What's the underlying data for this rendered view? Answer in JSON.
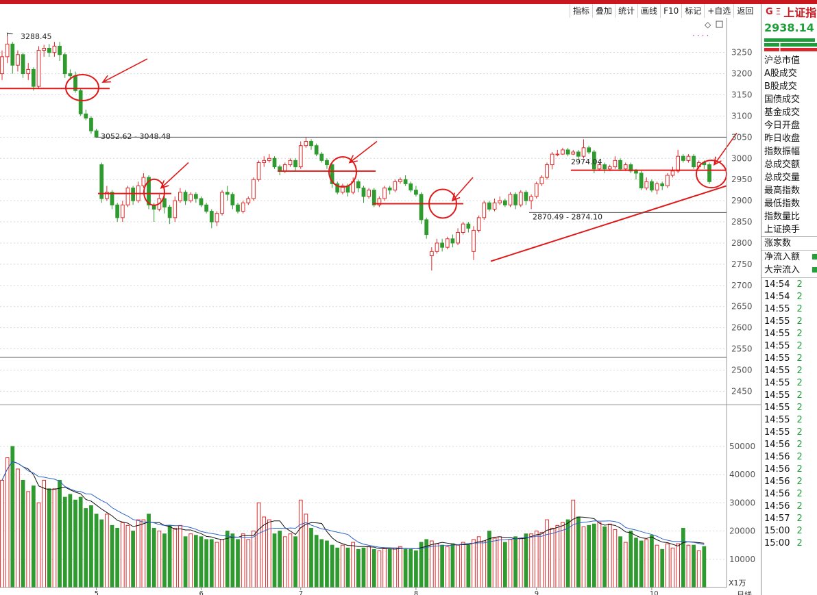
{
  "toolbar": {
    "buttons": [
      "指标",
      "叠加",
      "统计",
      "画线",
      "F10",
      "标记",
      "+自选",
      "返回"
    ]
  },
  "quote": {
    "marker_g": "G",
    "marker_e": "Ξ",
    "name": "上证指",
    "price": "2938.14",
    "fields": [
      "沪总市值",
      "A股成交",
      "B股成交",
      "国债成交",
      "基金成交",
      "今日开盘",
      "昨日收盘",
      "指数振幅",
      "总成交额",
      "总成交量",
      "最高指数",
      "最低指数",
      "指数量比",
      "上证换手",
      "涨家数",
      "净流入额",
      "大宗流入"
    ],
    "ticks": [
      {
        "time": "14:54",
        "v": "2"
      },
      {
        "time": "14:54",
        "v": "2"
      },
      {
        "time": "14:55",
        "v": "2"
      },
      {
        "time": "14:55",
        "v": "2"
      },
      {
        "time": "14:55",
        "v": "2"
      },
      {
        "time": "14:55",
        "v": "2"
      },
      {
        "time": "14:55",
        "v": "2"
      },
      {
        "time": "14:55",
        "v": "2"
      },
      {
        "time": "14:55",
        "v": "2"
      },
      {
        "time": "14:55",
        "v": "2"
      },
      {
        "time": "14:55",
        "v": "2"
      },
      {
        "time": "14:55",
        "v": "2"
      },
      {
        "time": "14:55",
        "v": "2"
      },
      {
        "time": "14:56",
        "v": "2"
      },
      {
        "time": "14:56",
        "v": "2"
      },
      {
        "time": "14:56",
        "v": "2"
      },
      {
        "time": "14:56",
        "v": "2"
      },
      {
        "time": "14:56",
        "v": "2"
      },
      {
        "time": "14:56",
        "v": "2"
      },
      {
        "time": "14:57",
        "v": "2"
      },
      {
        "time": "15:00",
        "v": "2"
      },
      {
        "time": "15:00",
        "v": "2"
      }
    ]
  },
  "colors": {
    "up": "#e02828",
    "down": "#2f9a2f",
    "annot": "#e01818",
    "ma_black": "#111111",
    "ma_blue": "#2a62c8"
  },
  "chart_data": {
    "type": "candlestick",
    "price_axis": {
      "ticks": [
        "3250",
        "3200",
        "3150",
        "3100",
        "3050",
        "3000",
        "2950",
        "2900",
        "2850",
        "2800",
        "2750",
        "2700",
        "2650",
        "2600",
        "2550",
        "2500",
        "2450"
      ],
      "range": [
        2410,
        3290
      ]
    },
    "volume_axis": {
      "ticks": [
        "50000",
        "40000",
        "30000",
        "20000",
        "10000"
      ],
      "range": [
        0,
        58000
      ],
      "unit": "X1万"
    },
    "x_axis": {
      "month_labels": [
        "5",
        "6",
        "7",
        "8",
        "9",
        "10"
      ],
      "corner_label": "日线"
    },
    "annotations": {
      "high_label": "3288.45",
      "range_label_1": "3052.62 - 3048.48",
      "range_label_2": "2870.49 - 2874.10",
      "range_label_3": "2974.04"
    },
    "candles": [
      [
        3200,
        3240,
        3255,
        3185
      ],
      [
        3240,
        3270,
        3288.45,
        3225
      ],
      [
        3270,
        3220,
        3275,
        3200
      ],
      [
        3220,
        3245,
        3255,
        3205
      ],
      [
        3245,
        3200,
        3250,
        3190
      ],
      [
        3200,
        3210,
        3225,
        3185
      ],
      [
        3210,
        3170,
        3215,
        3160
      ],
      [
        3170,
        3255,
        3265,
        3165
      ],
      [
        3255,
        3260,
        3268,
        3240
      ],
      [
        3260,
        3250,
        3270,
        3240
      ],
      [
        3250,
        3265,
        3275,
        3240
      ],
      [
        3265,
        3245,
        3275,
        3230
      ],
      [
        3245,
        3200,
        3250,
        3190
      ],
      [
        3200,
        3195,
        3210,
        3185
      ],
      [
        3195,
        3160,
        3205,
        3155
      ],
      [
        3160,
        3105,
        3165,
        3100
      ],
      [
        3105,
        3095,
        3115,
        3090
      ],
      [
        3095,
        3065,
        3100,
        3058
      ],
      [
        3065,
        3050,
        3070,
        3048.48
      ],
      [
        2985,
        2905,
        2990,
        2895
      ],
      [
        2905,
        2920,
        2935,
        2900
      ],
      [
        2920,
        2890,
        2925,
        2880
      ],
      [
        2890,
        2860,
        2895,
        2850
      ],
      [
        2860,
        2890,
        2900,
        2850
      ],
      [
        2890,
        2930,
        2935,
        2885
      ],
      [
        2930,
        2900,
        2935,
        2890
      ],
      [
        2900,
        2935,
        2945,
        2895
      ],
      [
        2935,
        2955,
        2965,
        2930
      ],
      [
        2955,
        2890,
        2960,
        2880
      ],
      [
        2890,
        2880,
        2895,
        2850
      ],
      [
        2880,
        2905,
        2915,
        2875
      ],
      [
        2905,
        2885,
        2910,
        2870
      ],
      [
        2885,
        2860,
        2890,
        2845
      ],
      [
        2860,
        2900,
        2910,
        2850
      ],
      [
        2900,
        2920,
        2930,
        2895
      ],
      [
        2920,
        2900,
        2925,
        2890
      ],
      [
        2900,
        2915,
        2920,
        2895
      ],
      [
        2915,
        2905,
        2920,
        2895
      ],
      [
        2905,
        2890,
        2910,
        2885
      ],
      [
        2890,
        2875,
        2895,
        2870
      ],
      [
        2875,
        2850,
        2880,
        2835
      ],
      [
        2850,
        2870,
        2875,
        2840
      ],
      [
        2870,
        2920,
        2925,
        2865
      ],
      [
        2920,
        2915,
        2935,
        2900
      ],
      [
        2915,
        2890,
        2920,
        2880
      ],
      [
        2890,
        2875,
        2895,
        2870
      ],
      [
        2875,
        2895,
        2900,
        2870
      ],
      [
        2895,
        2905,
        2910,
        2890
      ],
      [
        2905,
        2950,
        2955,
        2900
      ],
      [
        2950,
        2990,
        2995,
        2945
      ],
      [
        2990,
        2995,
        3005,
        2980
      ],
      [
        2995,
        3000,
        3010,
        2990
      ],
      [
        3000,
        2980,
        3005,
        2975
      ],
      [
        2980,
        2970,
        2985,
        2960
      ],
      [
        2970,
        2985,
        2990,
        2965
      ],
      [
        2985,
        2995,
        3000,
        2980
      ],
      [
        2995,
        2980,
        3000,
        2970
      ],
      [
        2980,
        3030,
        3040,
        2975
      ],
      [
        3030,
        3040,
        3050,
        3025
      ],
      [
        3040,
        3030,
        3045,
        3020
      ],
      [
        3030,
        3010,
        3035,
        3005
      ],
      [
        3010,
        2995,
        3015,
        2990
      ],
      [
        2995,
        2985,
        3000,
        2975
      ],
      [
        2985,
        2940,
        2990,
        2930
      ],
      [
        2940,
        2920,
        2945,
        2915
      ],
      [
        2920,
        2935,
        2940,
        2915
      ],
      [
        2935,
        2920,
        2940,
        2910
      ],
      [
        2920,
        2945,
        2955,
        2915
      ],
      [
        2945,
        2930,
        2950,
        2920
      ],
      [
        2930,
        2910,
        2935,
        2895
      ],
      [
        2910,
        2925,
        2930,
        2905
      ],
      [
        2925,
        2890,
        2930,
        2885
      ],
      [
        2890,
        2905,
        2910,
        2885
      ],
      [
        2905,
        2930,
        2935,
        2900
      ],
      [
        2930,
        2925,
        2935,
        2915
      ],
      [
        2925,
        2945,
        2950,
        2920
      ],
      [
        2945,
        2950,
        2955,
        2940
      ],
      [
        2950,
        2940,
        2960,
        2935
      ],
      [
        2940,
        2925,
        2945,
        2920
      ],
      [
        2925,
        2915,
        2935,
        2910
      ],
      [
        2915,
        2855,
        2920,
        2845
      ],
      [
        2855,
        2820,
        2860,
        2810
      ],
      [
        2770,
        2780,
        2790,
        2735
      ],
      [
        2780,
        2800,
        2810,
        2775
      ],
      [
        2800,
        2790,
        2810,
        2780
      ],
      [
        2790,
        2810,
        2815,
        2785
      ],
      [
        2810,
        2800,
        2820,
        2790
      ],
      [
        2800,
        2825,
        2835,
        2795
      ],
      [
        2825,
        2845,
        2850,
        2820
      ],
      [
        2845,
        2835,
        2850,
        2825
      ],
      [
        2780,
        2830,
        2840,
        2760
      ],
      [
        2830,
        2860,
        2865,
        2825
      ],
      [
        2860,
        2895,
        2900,
        2855
      ],
      [
        2895,
        2880,
        2900,
        2875
      ],
      [
        2880,
        2895,
        2905,
        2875
      ],
      [
        2895,
        2900,
        2910,
        2890
      ],
      [
        2900,
        2890,
        2905,
        2885
      ],
      [
        2890,
        2915,
        2920,
        2885
      ],
      [
        2915,
        2890,
        2920,
        2880
      ],
      [
        2890,
        2920,
        2925,
        2885
      ],
      [
        2920,
        2900,
        2925,
        2890
      ],
      [
        2900,
        2910,
        2915,
        2880
      ],
      [
        2910,
        2940,
        2945,
        2905
      ],
      [
        2940,
        2955,
        2960,
        2935
      ],
      [
        2955,
        2985,
        2990,
        2950
      ],
      [
        2985,
        3010,
        3015,
        2974.04
      ],
      [
        3010,
        3010,
        3020,
        3005
      ],
      [
        3010,
        3020,
        3025,
        3008
      ],
      [
        3020,
        3010,
        3025,
        3005
      ],
      [
        3010,
        3015,
        3020,
        3008
      ],
      [
        3015,
        3005,
        3020,
        2995
      ],
      [
        3005,
        3025,
        3045,
        3000
      ],
      [
        3025,
        3015,
        3030,
        3010
      ],
      [
        3015,
        2975,
        3020,
        2965
      ],
      [
        2975,
        2985,
        2990,
        2970
      ],
      [
        2985,
        2975,
        2990,
        2965
      ],
      [
        2975,
        2980,
        2985,
        2970
      ],
      [
        2980,
        2995,
        3005,
        2975
      ],
      [
        2995,
        2975,
        3000,
        2970
      ],
      [
        2975,
        2985,
        2990,
        2970
      ],
      [
        2985,
        2970,
        2990,
        2965
      ],
      [
        2970,
        2965,
        2975,
        2950
      ],
      [
        2965,
        2930,
        2970,
        2925
      ],
      [
        2930,
        2945,
        2955,
        2925
      ],
      [
        2945,
        2925,
        2950,
        2920
      ],
      [
        2925,
        2940,
        2945,
        2915
      ],
      [
        2940,
        2935,
        2945,
        2925
      ],
      [
        2935,
        2960,
        2965,
        2930
      ],
      [
        2960,
        2970,
        2980,
        2955
      ],
      [
        2970,
        3005,
        3020,
        2965
      ],
      [
        3005,
        2995,
        3010,
        2990
      ],
      [
        2995,
        3005,
        3010,
        2990
      ],
      [
        3005,
        2980,
        3010,
        2975
      ],
      [
        2980,
        2990,
        2995,
        2975
      ],
      [
        2990,
        2985,
        2995,
        2975
      ],
      [
        2985,
        2945,
        2990,
        2940
      ]
    ],
    "volume": [
      38000,
      46000,
      50000,
      42000,
      38000,
      34000,
      36000,
      30000,
      38000,
      35000,
      35000,
      38000,
      32000,
      33000,
      31000,
      32000,
      28000,
      29000,
      26000,
      24000,
      26000,
      22000,
      21000,
      23000,
      22000,
      20000,
      24000,
      24000,
      26000,
      21000,
      20000,
      19000,
      22000,
      21000,
      22000,
      18000,
      19000,
      18500,
      18000,
      17000,
      17000,
      16000,
      17000,
      20000,
      19000,
      17000,
      19000,
      17000,
      20000,
      30000,
      25000,
      24000,
      19000,
      20000,
      18000,
      19000,
      18000,
      31000,
      26000,
      21000,
      18500,
      17000,
      16500,
      15000,
      14000,
      15000,
      14000,
      16000,
      13500,
      14000,
      14500,
      13500,
      13000,
      14000,
      13500,
      14000,
      14500,
      13500,
      13500,
      13000,
      16000,
      17000,
      16500,
      15500,
      15000,
      14500,
      15500,
      15000,
      16000,
      15000,
      17000,
      18000,
      16500,
      20000,
      17500,
      18000,
      16000,
      17000,
      18000,
      17500,
      19000,
      19000,
      20000,
      19500,
      24000,
      21000,
      22000,
      23000,
      24000,
      31000,
      25000,
      21500,
      22000,
      22500,
      23000,
      21500,
      22500,
      20500,
      18000,
      16000,
      20000,
      17500,
      16500,
      17000,
      18500,
      15000,
      13500,
      15500,
      14000,
      15500,
      21000,
      15000,
      15000,
      13000,
      14500
    ]
  }
}
